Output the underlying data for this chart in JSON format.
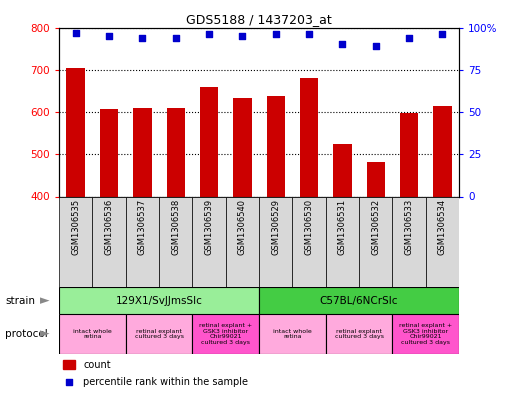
{
  "title": "GDS5188 / 1437203_at",
  "samples": [
    "GSM1306535",
    "GSM1306536",
    "GSM1306537",
    "GSM1306538",
    "GSM1306539",
    "GSM1306540",
    "GSM1306529",
    "GSM1306530",
    "GSM1306531",
    "GSM1306532",
    "GSM1306533",
    "GSM1306534"
  ],
  "counts": [
    703,
    606,
    610,
    610,
    660,
    632,
    638,
    680,
    524,
    482,
    598,
    614
  ],
  "percentiles": [
    97,
    95,
    94,
    94,
    96,
    95,
    96,
    96,
    90,
    89,
    94,
    96
  ],
  "ylim_left": [
    400,
    800
  ],
  "ylim_right": [
    0,
    100
  ],
  "yticks_left": [
    400,
    500,
    600,
    700,
    800
  ],
  "yticks_right": [
    0,
    25,
    50,
    75,
    100
  ],
  "bar_color": "#cc0000",
  "dot_color": "#0000cc",
  "dot_size": 18,
  "bar_width": 0.55,
  "strain_groups": [
    {
      "label": "129X1/SvJJmsSlc",
      "start": 0,
      "end": 5,
      "color": "#99ee99"
    },
    {
      "label": "C57BL/6NCrSlc",
      "start": 6,
      "end": 11,
      "color": "#44cc44"
    }
  ],
  "protocol_groups": [
    {
      "label": "intact whole\nretina",
      "start": 0,
      "end": 1,
      "color": "#ffaadd"
    },
    {
      "label": "retinal explant\ncultured 3 days",
      "start": 2,
      "end": 3,
      "color": "#ffaadd"
    },
    {
      "label": "retinal explant +\nGSK3 inhibitor\nChir99021\ncultured 3 days",
      "start": 4,
      "end": 5,
      "color": "#ff55cc"
    },
    {
      "label": "intact whole\nretina",
      "start": 6,
      "end": 7,
      "color": "#ffaadd"
    },
    {
      "label": "retinal explant\ncultured 3 days",
      "start": 8,
      "end": 9,
      "color": "#ffaadd"
    },
    {
      "label": "retinal explant +\nGSK3 inhibitor\nChir99021\ncultured 3 days",
      "start": 10,
      "end": 11,
      "color": "#ff55cc"
    }
  ],
  "sample_cell_color": "#d8d8d8",
  "legend_count_color": "#cc0000",
  "legend_pct_color": "#0000cc",
  "grid_color": "black",
  "grid_style": "dotted"
}
